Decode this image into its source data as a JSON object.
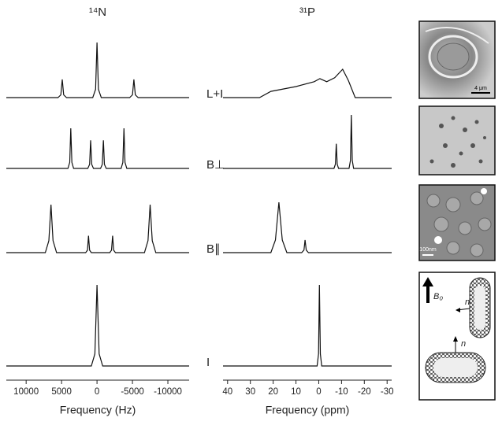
{
  "rows": [
    "L+I",
    "B⊥",
    "B∥",
    "I"
  ],
  "images": {
    "scale_labels": [
      "4 μm",
      "100nm"
    ],
    "field": "B₀",
    "normal_labels": [
      "n",
      "n"
    ]
  },
  "chart_data": [
    {
      "type": "line",
      "title": "¹⁴N",
      "xlabel": "Frequency (Hz)",
      "color": "#111",
      "xlim": [
        12800,
        -13000
      ],
      "xticks": [
        10000,
        5000,
        0,
        -5000,
        -10000
      ],
      "series": [
        {
          "x": [
            12800,
            5500,
            5100,
            4900,
            4700,
            4300,
            600,
            200,
            0,
            -200,
            -600,
            -4600,
            -5000,
            -5200,
            -5400,
            -5800,
            -13000
          ],
          "values": [
            0,
            0,
            5,
            33,
            5,
            0,
            0,
            15,
            100,
            15,
            0,
            0,
            5,
            33,
            5,
            0,
            0
          ]
        },
        {
          "x": [
            12800,
            4100,
            3850,
            3700,
            3550,
            3300,
            1300,
            1050,
            900,
            750,
            500,
            -500,
            -750,
            -900,
            -1050,
            -1300,
            -3400,
            -3650,
            -3800,
            -3950,
            -4200,
            -13000
          ],
          "values": [
            0,
            0,
            15,
            100,
            15,
            0,
            0,
            10,
            70,
            10,
            0,
            0,
            10,
            70,
            10,
            0,
            0,
            15,
            100,
            15,
            0,
            0
          ]
        },
        {
          "x": [
            12800,
            7300,
            6800,
            6500,
            6200,
            5700,
            1600,
            1350,
            1200,
            1050,
            800,
            -1800,
            -2050,
            -2200,
            -2350,
            -2600,
            -6700,
            -7200,
            -7500,
            -7800,
            -8300,
            -13000
          ],
          "values": [
            0,
            0,
            25,
            100,
            25,
            0,
            0,
            5,
            35,
            5,
            0,
            0,
            5,
            35,
            5,
            0,
            0,
            25,
            100,
            25,
            0,
            0
          ]
        },
        {
          "x": [
            12800,
            800,
            300,
            0,
            -300,
            -800,
            -13000
          ],
          "values": [
            0,
            0,
            15,
            100,
            15,
            0,
            0
          ]
        }
      ]
    },
    {
      "type": "line",
      "title": "³¹P",
      "xlabel": "Frequency (ppm)",
      "color": "#111",
      "xlim": [
        42,
        -32
      ],
      "xticks": [
        40,
        30,
        20,
        10,
        0,
        -10,
        -20,
        -30
      ],
      "series": [
        {
          "x": [
            42,
            26,
            21,
            10,
            2,
            -0.5,
            -3.5,
            -7,
            -10.5,
            -13,
            -16,
            -32
          ],
          "values": [
            0,
            0,
            22,
            39,
            56,
            67,
            56,
            70,
            100,
            60,
            0,
            0
          ]
        },
        {
          "x": [
            42,
            -6.7,
            -7.3,
            -7.7,
            -8.1,
            -8.7,
            -13.3,
            -13.9,
            -14.3,
            -14.7,
            -15.3,
            -32
          ],
          "values": [
            0,
            0,
            8,
            46,
            8,
            0,
            0,
            15,
            100,
            15,
            0,
            0
          ]
        },
        {
          "x": [
            42,
            21,
            19,
            17.5,
            16,
            14,
            7.5,
            6.5,
            6,
            5.5,
            4.5,
            -32
          ],
          "values": [
            0,
            0,
            25,
            100,
            25,
            0,
            0,
            5,
            25,
            5,
            0,
            0
          ]
        },
        {
          "x": [
            42,
            0.7,
            0.1,
            -0.3,
            -0.7,
            -1.3,
            -32
          ],
          "values": [
            0,
            0,
            15,
            100,
            15,
            0,
            0
          ]
        }
      ]
    }
  ]
}
